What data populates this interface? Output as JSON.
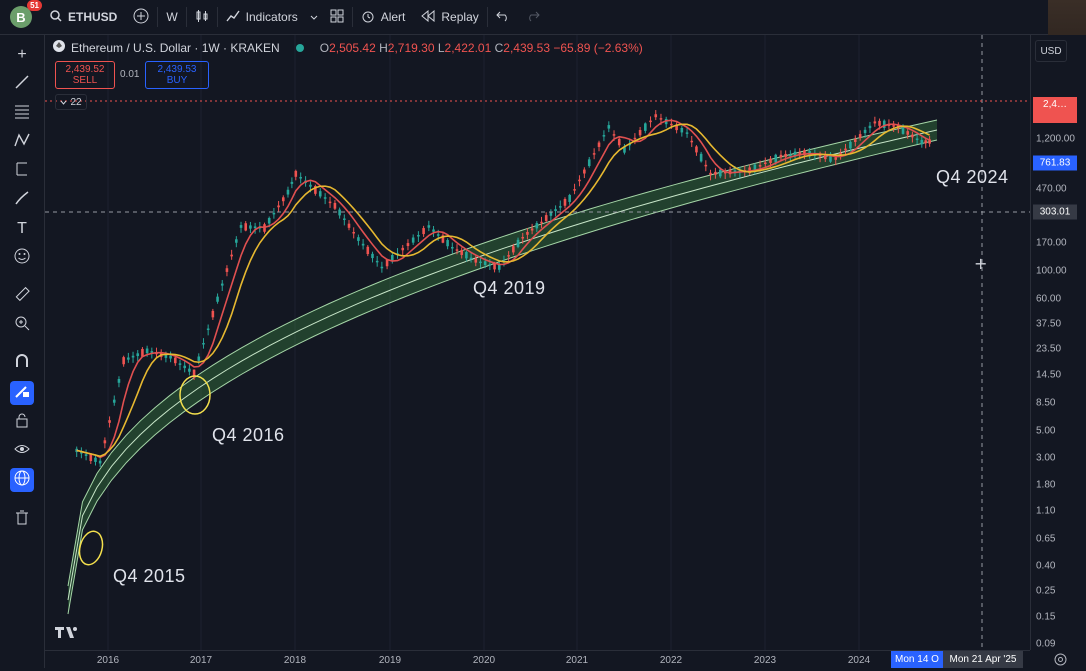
{
  "topbar": {
    "avatar_letter": "B",
    "notifications": "51",
    "symbol": "ETHUSD",
    "interval": "W",
    "indicators_label": "Indicators",
    "alert_label": "Alert",
    "replay_label": "Replay"
  },
  "legend": {
    "title": "Ethereum / U.S. Dollar · 1W · KRAKEN",
    "open_label": "O",
    "open": "2,505.42",
    "high_label": "H",
    "high": "2,719.30",
    "low_label": "L",
    "low": "2,422.01",
    "close_label": "C",
    "close": "2,439.53",
    "change": "−65.89 (−2.63%)"
  },
  "trade": {
    "sell_price": "2,439.52",
    "sell_label": "SELL",
    "spread": "0.01",
    "buy_price": "2,439.53",
    "buy_label": "BUY",
    "collapsed_count": "22"
  },
  "price_axis": {
    "currency": "USD",
    "ticks": [
      "1,200.00",
      "470.00",
      "170.00",
      "100.00",
      "60.00",
      "37.50",
      "23.50",
      "14.50",
      "8.50",
      "5.00",
      "3.00",
      "1.80",
      "1.10",
      "0.65",
      "0.40",
      "0.25",
      "0.15",
      "0.09"
    ],
    "current_price_label": "2,4…",
    "blue_label": "761.83",
    "crosshair_label": "303.01"
  },
  "time_axis": {
    "ticks": [
      "2016",
      "2017",
      "2018",
      "2019",
      "2020",
      "2021",
      "2022",
      "2023",
      "2024"
    ],
    "blue_label": "Mon 14 O",
    "crosshair_label": "Mon 21 Apr '25"
  },
  "annotations": [
    "Q4 2015",
    "Q4 2016",
    "Q4 2019",
    "Q4 2024"
  ],
  "chart_data": {
    "type": "line",
    "title": "Ethereum / U.S. Dollar · 1W · KRAKEN",
    "log_scale": true,
    "x": [
      "2015-09",
      "2015-12",
      "2016-03",
      "2016-06",
      "2016-09",
      "2016-12",
      "2017-03",
      "2017-06",
      "2017-09",
      "2017-12",
      "2018-01",
      "2018-06",
      "2018-09",
      "2018-12",
      "2019-06",
      "2019-09",
      "2019-12",
      "2020-03",
      "2020-06",
      "2020-09",
      "2020-12",
      "2021-05",
      "2021-07",
      "2021-11",
      "2022-03",
      "2022-06",
      "2022-11",
      "2023-03",
      "2023-06",
      "2023-10",
      "2024-03",
      "2024-06",
      "2024-09",
      "2024-10"
    ],
    "series": [
      {
        "values": [
          1.2,
          0.9,
          11,
          14,
          12,
          8,
          50,
          300,
          290,
          700,
          1100,
          500,
          220,
          110,
          300,
          180,
          130,
          110,
          230,
          370,
          600,
          3500,
          2000,
          4600,
          3000,
          1100,
          1200,
          1700,
          1850,
          1600,
          3900,
          3500,
          2400,
          2439
        ]
      }
    ],
    "ylim": [
      0.09,
      4800
    ],
    "colors": {
      "up": "#26a69a",
      "down": "#ef5350",
      "ma_fast": "#e05050",
      "ma_slow": "#e6b830",
      "band": "#4caf50"
    }
  }
}
